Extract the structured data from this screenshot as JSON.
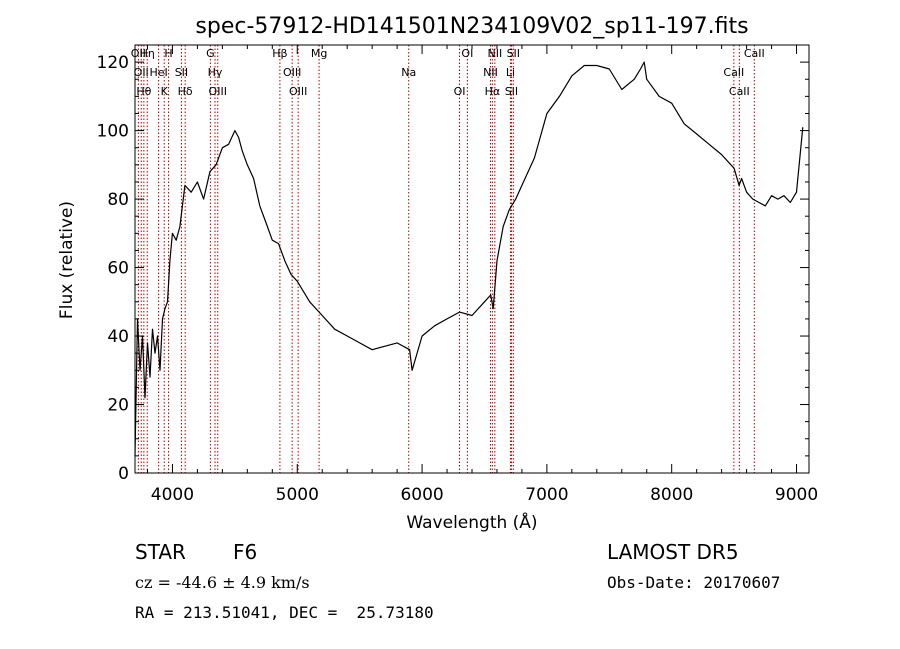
{
  "chart_data": {
    "type": "line",
    "title": "spec-57912-HD141501N234109V02_sp11-197.fits",
    "xlabel": "Wavelength (Å)",
    "ylabel": "Flux (relative)",
    "xlim": [
      3700,
      9100
    ],
    "ylim": [
      0,
      125
    ],
    "xticks": [
      "4000",
      "5000",
      "6000",
      "7000",
      "8000",
      "9000"
    ],
    "yticks": [
      "0",
      "20",
      "40",
      "60",
      "80",
      "100",
      "120"
    ],
    "grid": false,
    "series": [
      {
        "x": [
          3700,
          3720,
          3740,
          3760,
          3780,
          3800,
          3820,
          3840,
          3860,
          3880,
          3900,
          3920,
          3940,
          3960,
          3980,
          4000,
          4030,
          4060,
          4100,
          4150,
          4200,
          4250,
          4300,
          4350,
          4400,
          4450,
          4500,
          4530,
          4560,
          4600,
          4650,
          4700,
          4750,
          4800,
          4850,
          4900,
          4950,
          5000,
          5100,
          5200,
          5300,
          5400,
          5500,
          5600,
          5700,
          5800,
          5900,
          5920,
          6000,
          6100,
          6200,
          6300,
          6400,
          6500,
          6550,
          6570,
          6600,
          6650,
          6700,
          6750,
          6800,
          6900,
          7000,
          7100,
          7200,
          7300,
          7400,
          7500,
          7600,
          7700,
          7750,
          7780,
          7800,
          7900,
          8000,
          8100,
          8200,
          8300,
          8400,
          8500,
          8540,
          8560,
          8600,
          8650,
          8700,
          8750,
          8800,
          8850,
          8900,
          8950,
          9000,
          9050
        ],
        "y": [
          5,
          45,
          30,
          40,
          22,
          38,
          28,
          42,
          35,
          40,
          30,
          45,
          48,
          50,
          62,
          70,
          68,
          72,
          84,
          82,
          85,
          80,
          88,
          90,
          95,
          96,
          100,
          98,
          94,
          90,
          86,
          78,
          73,
          68,
          67,
          62,
          58,
          56,
          50,
          46,
          42,
          40,
          38,
          36,
          37,
          38,
          36,
          30,
          40,
          43,
          45,
          47,
          46,
          50,
          52,
          48,
          62,
          72,
          77,
          80,
          84,
          92,
          105,
          110,
          116,
          119,
          119,
          118,
          112,
          115,
          118,
          120,
          115,
          110,
          108,
          102,
          99,
          96,
          93,
          89,
          84,
          86,
          82,
          80,
          79,
          78,
          81,
          80,
          81,
          79,
          82,
          101
        ]
      }
    ],
    "lines": [
      {
        "x": 3727,
        "labels": [
          "OII"
        ]
      },
      {
        "x": 3750,
        "labels": [
          "OII"
        ]
      },
      {
        "x": 3771,
        "labels": [
          "Hθ"
        ]
      },
      {
        "x": 3798,
        "labels": [
          "Hη"
        ]
      },
      {
        "x": 3889,
        "labels": [
          "HeI"
        ]
      },
      {
        "x": 3934,
        "labels": [
          "K"
        ]
      },
      {
        "x": 3969,
        "labels": [
          "H"
        ]
      },
      {
        "x": 4072,
        "labels": [
          "SII"
        ]
      },
      {
        "x": 4102,
        "labels": [
          "Hδ"
        ]
      },
      {
        "x": 4304,
        "labels": [
          "G"
        ]
      },
      {
        "x": 4341,
        "labels": [
          "Hγ"
        ]
      },
      {
        "x": 4363,
        "labels": [
          "OIII"
        ]
      },
      {
        "x": 4861,
        "labels": [
          "Hβ"
        ]
      },
      {
        "x": 4959,
        "labels": [
          "OIII"
        ]
      },
      {
        "x": 5007,
        "labels": [
          "OIII"
        ]
      },
      {
        "x": 5175,
        "labels": [
          "Mg"
        ]
      },
      {
        "x": 5893,
        "labels": [
          "Na"
        ]
      },
      {
        "x": 6300,
        "labels": [
          "OI"
        ]
      },
      {
        "x": 6363,
        "labels": [
          "OI"
        ]
      },
      {
        "x": 6548,
        "labels": [
          "NII"
        ]
      },
      {
        "x": 6563,
        "labels": [
          "Hα"
        ]
      },
      {
        "x": 6583,
        "labels": [
          "NII"
        ]
      },
      {
        "x": 6708,
        "labels": [
          "Li"
        ]
      },
      {
        "x": 6716,
        "labels": [
          "SII"
        ]
      },
      {
        "x": 6731,
        "labels": [
          "SII"
        ]
      },
      {
        "x": 8498,
        "labels": [
          "CaII"
        ]
      },
      {
        "x": 8542,
        "labels": [
          "CaII"
        ]
      },
      {
        "x": 8662,
        "labels": [
          "CaII"
        ]
      }
    ]
  },
  "footer": {
    "class_label": "STAR",
    "subclass": "F6",
    "survey": "LAMOST DR5",
    "cz": "cz = -44.6 ± 4.9 km/s",
    "obs_date": "Obs-Date: 20170607",
    "coords": "RA = 213.51041, DEC =  25.73180"
  },
  "colors": {
    "line": "#000000",
    "marker_lines": "#b00000"
  }
}
